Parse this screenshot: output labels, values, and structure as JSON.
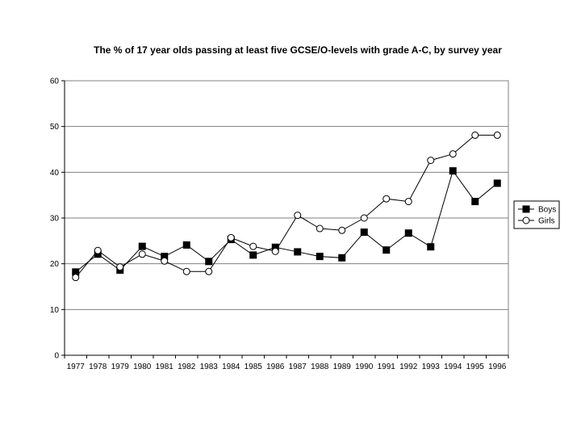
{
  "chart_data": {
    "type": "line",
    "title": "The % of 17 year olds passing at least five GCSE/O-levels with grade A-C, by survey year",
    "xlabel": "",
    "ylabel": "",
    "x": [
      "1977",
      "1978",
      "1979",
      "1980",
      "1981",
      "1982",
      "1983",
      "1984",
      "1985",
      "1986",
      "1987",
      "1988",
      "1989",
      "1990",
      "1991",
      "1992",
      "1993",
      "1994",
      "1995",
      "1996"
    ],
    "ylim": [
      0,
      60
    ],
    "yticks": [
      0,
      10,
      20,
      30,
      40,
      50,
      60
    ],
    "grid": true,
    "legend": "right",
    "series": [
      {
        "name": "Boys",
        "marker": "filled-square",
        "color": "#000000",
        "values": [
          18.2,
          22.1,
          18.6,
          23.8,
          21.6,
          24.1,
          20.5,
          25.3,
          21.9,
          23.6,
          22.6,
          21.6,
          21.3,
          26.9,
          23.0,
          26.7,
          23.7,
          40.3,
          33.6,
          37.6
        ]
      },
      {
        "name": "Girls",
        "marker": "open-circle",
        "color": "#000000",
        "values": [
          17.0,
          22.9,
          19.3,
          22.1,
          20.6,
          18.3,
          18.3,
          25.7,
          23.8,
          22.7,
          30.6,
          27.7,
          27.3,
          30.0,
          34.2,
          33.6,
          42.6,
          44.0,
          48.1,
          48.1
        ]
      }
    ]
  }
}
